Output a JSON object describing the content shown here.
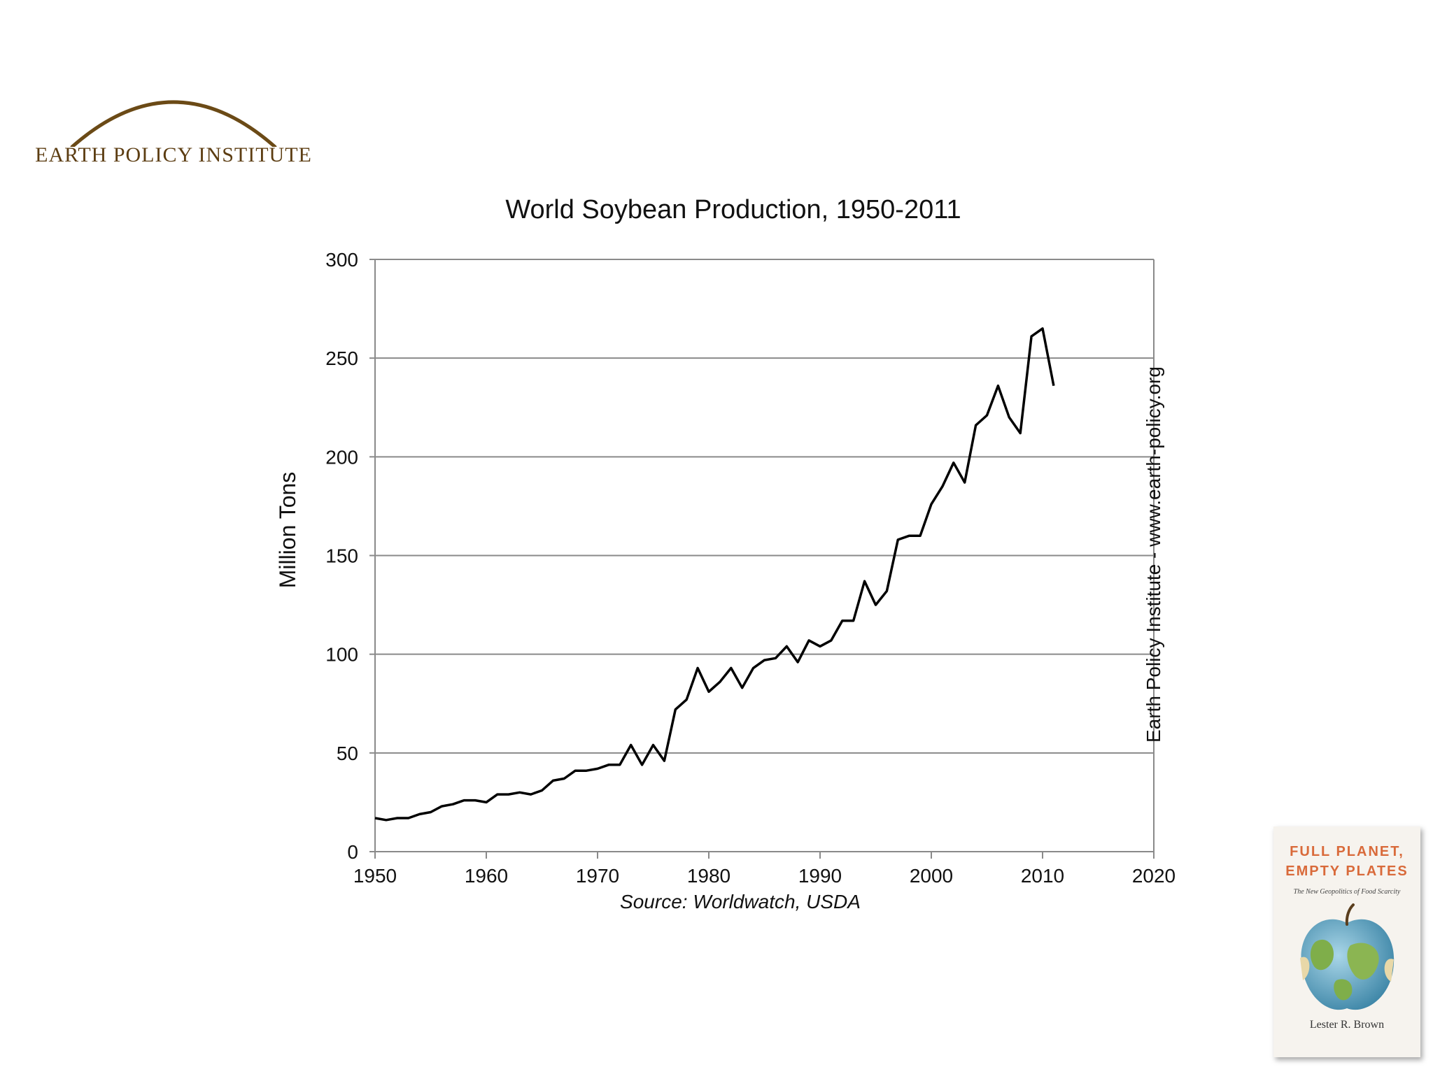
{
  "logo": {
    "text": "EARTH POLICY INSTITUTE",
    "color": "#5c3d12"
  },
  "book": {
    "title": "FULL PLANET,\nEMPTY PLATES",
    "subtitle": "The New Geopolitics of Food Scarcity",
    "author": "Lester R. Brown",
    "accent": "#d96a3a"
  },
  "chart_data": {
    "type": "line",
    "title": "World Soybean Production, 1950-2011",
    "ylabel": "Million Tons",
    "source": "Source: Worldwatch, USDA",
    "side_note": "Earth Policy Institute - www.earth-policy.org",
    "xlim": [
      1950,
      2020
    ],
    "ylim": [
      0,
      300
    ],
    "xticks": [
      1950,
      1960,
      1970,
      1980,
      1990,
      2000,
      2010,
      2020
    ],
    "yticks": [
      0,
      50,
      100,
      150,
      200,
      250,
      300
    ],
    "grid": true,
    "line_color": "#000000",
    "x": [
      1950,
      1951,
      1952,
      1953,
      1954,
      1955,
      1956,
      1957,
      1958,
      1959,
      1960,
      1961,
      1962,
      1963,
      1964,
      1965,
      1966,
      1967,
      1968,
      1969,
      1970,
      1971,
      1972,
      1973,
      1974,
      1975,
      1976,
      1977,
      1978,
      1979,
      1980,
      1981,
      1982,
      1983,
      1984,
      1985,
      1986,
      1987,
      1988,
      1989,
      1990,
      1991,
      1992,
      1993,
      1994,
      1995,
      1996,
      1997,
      1998,
      1999,
      2000,
      2001,
      2002,
      2003,
      2004,
      2005,
      2006,
      2007,
      2008,
      2009,
      2010,
      2011
    ],
    "y": [
      17,
      16,
      17,
      17,
      19,
      20,
      23,
      24,
      26,
      26,
      25,
      29,
      29,
      30,
      29,
      31,
      36,
      37,
      41,
      41,
      42,
      44,
      44,
      54,
      44,
      54,
      46,
      72,
      77,
      93,
      81,
      86,
      93,
      83,
      93,
      97,
      98,
      104,
      96,
      107,
      104,
      107,
      117,
      117,
      137,
      125,
      132,
      158,
      160,
      160,
      176,
      185,
      197,
      187,
      216,
      221,
      236,
      220,
      212,
      261,
      265,
      236
    ]
  }
}
